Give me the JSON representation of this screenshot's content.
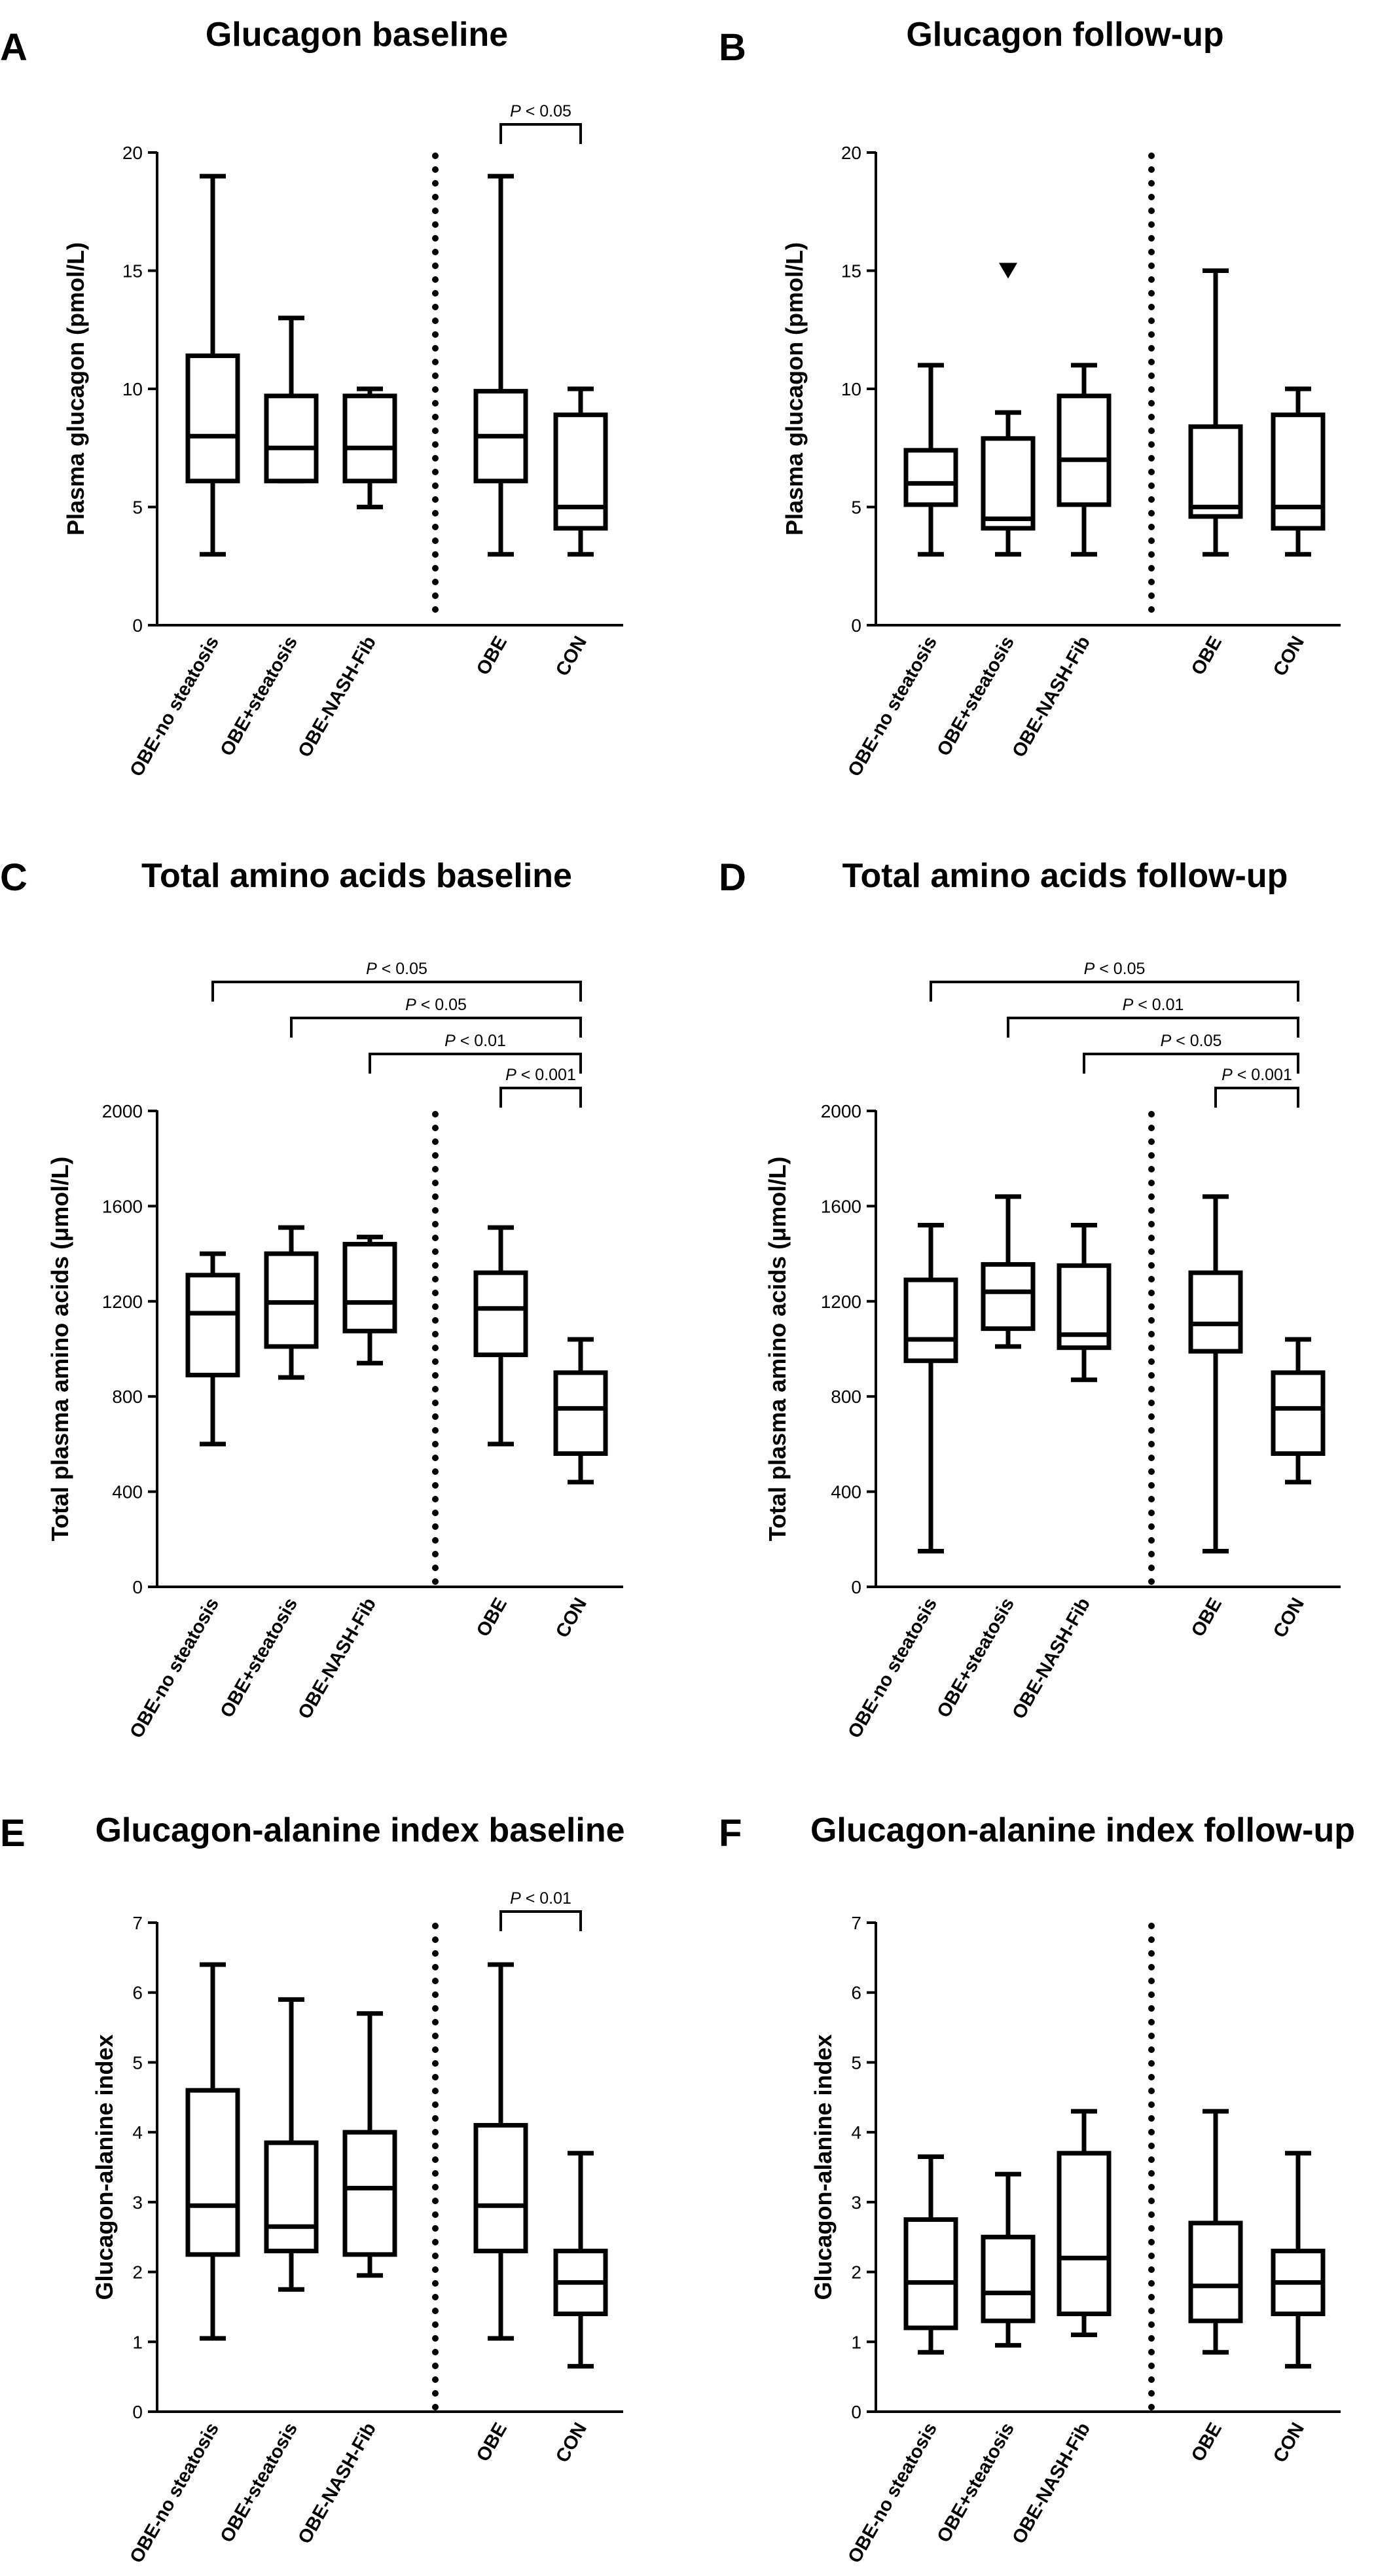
{
  "figure": {
    "group_divider": "dotted",
    "colors": {
      "line": "#000000",
      "fill": "#ffffff"
    }
  },
  "chart_data": [
    {
      "panel": "A",
      "title": "Glucagon baseline",
      "type": "box",
      "ylabel": "Plasma glucagon (pmol/L)",
      "ylim": [
        0,
        20
      ],
      "yticks": [
        0,
        5,
        10,
        15,
        20
      ],
      "categories": [
        "OBE-no steatosis",
        "OBE+steatosis",
        "OBE-NASH-Fib",
        "OBE",
        "CON"
      ],
      "boxes": [
        {
          "min": 3,
          "q1": 6.1,
          "median": 8,
          "q3": 11.4,
          "max": 19
        },
        {
          "min": 6.1,
          "q1": 6.1,
          "median": 7.5,
          "q3": 9.7,
          "max": 13
        },
        {
          "min": 5,
          "q1": 6.1,
          "median": 7.5,
          "q3": 9.7,
          "max": 10
        },
        {
          "min": 3,
          "q1": 6.1,
          "median": 8,
          "q3": 9.9,
          "max": 19
        },
        {
          "min": 3,
          "q1": 4.1,
          "median": 5,
          "q3": 8.9,
          "max": 10
        }
      ],
      "outliers": [],
      "comparisons": [
        {
          "from": 3,
          "to": 4,
          "label": "P < 0.05"
        }
      ]
    },
    {
      "panel": "B",
      "title": "Glucagon follow-up",
      "type": "box",
      "ylabel": "Plasma glucagon (pmol/L)",
      "ylim": [
        0,
        20
      ],
      "yticks": [
        0,
        5,
        10,
        15,
        20
      ],
      "categories": [
        "OBE-no steatosis",
        "OBE+steatosis",
        "OBE-NASH-Fib",
        "OBE",
        "CON"
      ],
      "boxes": [
        {
          "min": 3,
          "q1": 5.1,
          "median": 6,
          "q3": 7.4,
          "max": 11
        },
        {
          "min": 3,
          "q1": 4.1,
          "median": 4.5,
          "q3": 7.9,
          "max": 9
        },
        {
          "min": 3,
          "q1": 5.1,
          "median": 7,
          "q3": 9.7,
          "max": 11
        },
        {
          "min": 3,
          "q1": 4.6,
          "median": 5,
          "q3": 8.4,
          "max": 15
        },
        {
          "min": 3,
          "q1": 4.1,
          "median": 5,
          "q3": 8.9,
          "max": 10
        }
      ],
      "outliers": [
        {
          "group": 1,
          "value": 15
        }
      ],
      "comparisons": []
    },
    {
      "panel": "C",
      "title": "Total amino acids baseline",
      "type": "box",
      "ylabel": "Total plasma amino acids (μmol/L)",
      "ylim": [
        0,
        2000
      ],
      "yticks": [
        0,
        400,
        800,
        1200,
        1600,
        2000
      ],
      "categories": [
        "OBE-no steatosis",
        "OBE+steatosis",
        "OBE-NASH-Fib",
        "OBE",
        "CON"
      ],
      "boxes": [
        {
          "min": 600,
          "q1": 890,
          "median": 1150,
          "q3": 1310,
          "max": 1400
        },
        {
          "min": 880,
          "q1": 1010,
          "median": 1195,
          "q3": 1400,
          "max": 1510
        },
        {
          "min": 940,
          "q1": 1075,
          "median": 1195,
          "q3": 1440,
          "max": 1470
        },
        {
          "min": 600,
          "q1": 975,
          "median": 1170,
          "q3": 1320,
          "max": 1510
        },
        {
          "min": 440,
          "q1": 560,
          "median": 750,
          "q3": 900,
          "max": 1040
        }
      ],
      "outliers": [],
      "comparisons": [
        {
          "from": 0,
          "to": 4,
          "label": "P < 0.05"
        },
        {
          "from": 1,
          "to": 4,
          "label": "P < 0.05"
        },
        {
          "from": 2,
          "to": 4,
          "label": "P < 0.01"
        },
        {
          "from": 3,
          "to": 4,
          "label": "P < 0.001"
        }
      ]
    },
    {
      "panel": "D",
      "title": "Total amino acids follow-up",
      "type": "box",
      "ylabel": "Total plasma amino acids (μmol/L)",
      "ylim": [
        0,
        2000
      ],
      "yticks": [
        0,
        400,
        800,
        1200,
        1600,
        2000
      ],
      "categories": [
        "OBE-no steatosis",
        "OBE+steatosis",
        "OBE-NASH-Fib",
        "OBE",
        "CON"
      ],
      "boxes": [
        {
          "min": 150,
          "q1": 950,
          "median": 1040,
          "q3": 1290,
          "max": 1520
        },
        {
          "min": 1010,
          "q1": 1085,
          "median": 1240,
          "q3": 1355,
          "max": 1640
        },
        {
          "min": 870,
          "q1": 1005,
          "median": 1060,
          "q3": 1350,
          "max": 1520
        },
        {
          "min": 150,
          "q1": 990,
          "median": 1105,
          "q3": 1320,
          "max": 1640
        },
        {
          "min": 440,
          "q1": 560,
          "median": 750,
          "q3": 900,
          "max": 1040
        }
      ],
      "outliers": [],
      "comparisons": [
        {
          "from": 0,
          "to": 4,
          "label": "P < 0.05"
        },
        {
          "from": 1,
          "to": 4,
          "label": "P < 0.01"
        },
        {
          "from": 2,
          "to": 4,
          "label": "P < 0.05"
        },
        {
          "from": 3,
          "to": 4,
          "label": "P < 0.001"
        }
      ]
    },
    {
      "panel": "E",
      "title": "Glucagon-alanine index baseline",
      "type": "box",
      "ylabel": "Glucagon-alanine index",
      "ylim": [
        0,
        7
      ],
      "yticks": [
        0,
        1,
        2,
        3,
        4,
        5,
        6,
        7
      ],
      "categories": [
        "OBE-no steatosis",
        "OBE+steatosis",
        "OBE-NASH-Fib",
        "OBE",
        "CON"
      ],
      "boxes": [
        {
          "min": 1.05,
          "q1": 2.25,
          "median": 2.95,
          "q3": 4.6,
          "max": 6.4
        },
        {
          "min": 1.75,
          "q1": 2.3,
          "median": 2.65,
          "q3": 3.85,
          "max": 5.9
        },
        {
          "min": 1.95,
          "q1": 2.25,
          "median": 3.2,
          "q3": 4.0,
          "max": 5.7
        },
        {
          "min": 1.05,
          "q1": 2.3,
          "median": 2.95,
          "q3": 4.1,
          "max": 6.4
        },
        {
          "min": 0.65,
          "q1": 1.4,
          "median": 1.85,
          "q3": 2.3,
          "max": 3.7
        }
      ],
      "outliers": [],
      "comparisons": [
        {
          "from": 3,
          "to": 4,
          "label": "P < 0.01"
        }
      ]
    },
    {
      "panel": "F",
      "title": "Glucagon-alanine index follow-up",
      "type": "box",
      "ylabel": "Glucagon-alanine index",
      "ylim": [
        0,
        7
      ],
      "yticks": [
        0,
        1,
        2,
        3,
        4,
        5,
        6,
        7
      ],
      "categories": [
        "OBE-no steatosis",
        "OBE+steatosis",
        "OBE-NASH-Fib",
        "OBE",
        "CON"
      ],
      "boxes": [
        {
          "min": 0.85,
          "q1": 1.2,
          "median": 1.85,
          "q3": 2.75,
          "max": 3.65
        },
        {
          "min": 0.95,
          "q1": 1.3,
          "median": 1.7,
          "q3": 2.5,
          "max": 3.4
        },
        {
          "min": 1.1,
          "q1": 1.4,
          "median": 2.2,
          "q3": 3.7,
          "max": 4.3
        },
        {
          "min": 0.85,
          "q1": 1.3,
          "median": 1.8,
          "q3": 2.7,
          "max": 4.3
        },
        {
          "min": 0.65,
          "q1": 1.4,
          "median": 1.85,
          "q3": 2.3,
          "max": 3.7
        }
      ],
      "outliers": [],
      "comparisons": []
    }
  ]
}
